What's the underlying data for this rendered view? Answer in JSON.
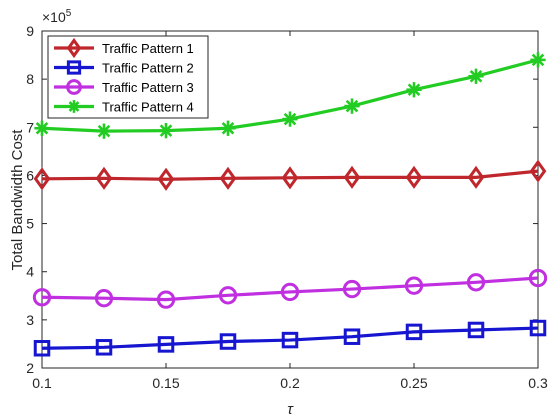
{
  "chart_data": {
    "type": "line",
    "x": [
      0.1,
      0.125,
      0.15,
      0.175,
      0.2,
      0.225,
      0.25,
      0.275,
      0.3
    ],
    "xlabel": "τ",
    "ylabel": "Total Bandwidth Cost",
    "y_scale_label": "×10",
    "y_scale_exponent": "5",
    "xlim": [
      0.1,
      0.3
    ],
    "ylim": [
      2,
      9
    ],
    "x_ticks": [
      "0.1",
      "0.15",
      "0.2",
      "0.25",
      "0.3"
    ],
    "y_ticks": [
      "2",
      "3",
      "4",
      "5",
      "6",
      "7",
      "8",
      "9"
    ],
    "grid": false,
    "legend_position": "top-left",
    "series": [
      {
        "name": "Traffic Pattern 1",
        "color": "#c0272d",
        "marker": "diamond",
        "values": [
          5.93,
          5.94,
          5.92,
          5.94,
          5.95,
          5.96,
          5.96,
          5.96,
          6.09
        ]
      },
      {
        "name": "Traffic Pattern 2",
        "color": "#1616d0",
        "marker": "square",
        "values": [
          2.41,
          2.43,
          2.49,
          2.55,
          2.58,
          2.65,
          2.75,
          2.79,
          2.83
        ]
      },
      {
        "name": "Traffic Pattern 3",
        "color": "#c030e0",
        "marker": "circle",
        "values": [
          3.47,
          3.45,
          3.42,
          3.51,
          3.58,
          3.64,
          3.71,
          3.78,
          3.87
        ]
      },
      {
        "name": "Traffic Pattern 4",
        "color": "#22cc22",
        "marker": "asterisk",
        "values": [
          6.98,
          6.92,
          6.93,
          6.98,
          7.17,
          7.44,
          7.78,
          8.06,
          8.4
        ]
      }
    ]
  }
}
